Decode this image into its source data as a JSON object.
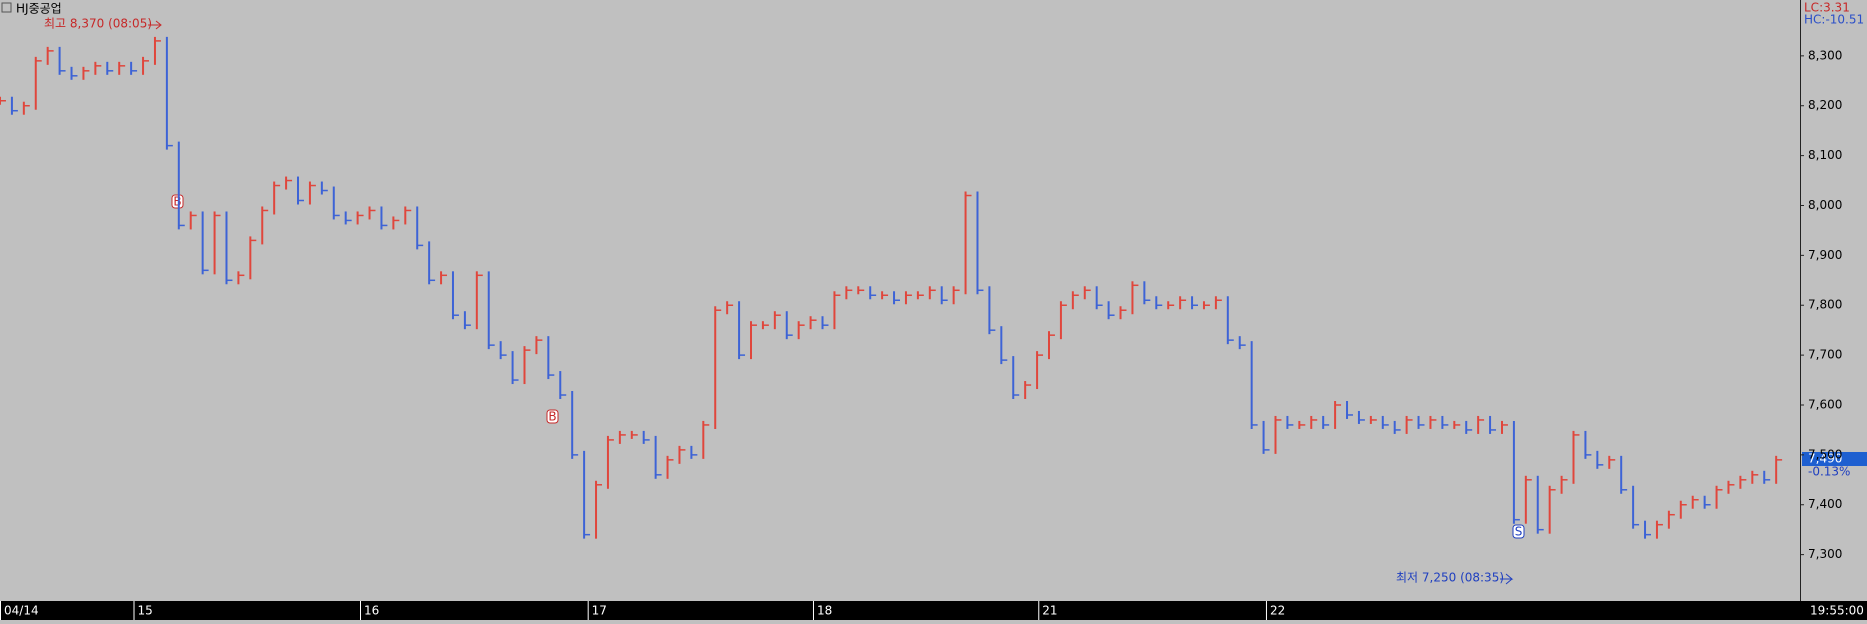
{
  "chart_data": {
    "type": "tickbar",
    "title": "HJ중공업",
    "indicators": [
      "LC:3.31",
      "HC:-10.51"
    ],
    "x": [
      0,
      1,
      2,
      3,
      4,
      5,
      6,
      7,
      8,
      9,
      10,
      11,
      12,
      13,
      14,
      15,
      16,
      17,
      18,
      19,
      20,
      21,
      22,
      23,
      24,
      25,
      26,
      27,
      28,
      29,
      30,
      31,
      32,
      33,
      34,
      35,
      36,
      37,
      38,
      39,
      40,
      41,
      42,
      43,
      44,
      45,
      46,
      47,
      48,
      49,
      50,
      51,
      52,
      53,
      54,
      55,
      56,
      57,
      58,
      59,
      60,
      61,
      62,
      63,
      64,
      65,
      66,
      67,
      68,
      69,
      70,
      71,
      72,
      73,
      74,
      75,
      76,
      77,
      78,
      79,
      80,
      81,
      82,
      83,
      84,
      85,
      86,
      87,
      88,
      89,
      90,
      91,
      92,
      93,
      94,
      95,
      96,
      97,
      98,
      99,
      100,
      101,
      102,
      103,
      104,
      105,
      106,
      107,
      108,
      109,
      110,
      111,
      112,
      113,
      114,
      115,
      116,
      117,
      118,
      119,
      120,
      121,
      122,
      123,
      124,
      125,
      126,
      127,
      128,
      129,
      130,
      131,
      132,
      133,
      134,
      135,
      136,
      137,
      138,
      139,
      140,
      141,
      142,
      143,
      144,
      145,
      146,
      147,
      148,
      149
    ],
    "values": [
      8210,
      8190,
      8200,
      8290,
      8310,
      8270,
      8260,
      8270,
      8280,
      8270,
      8280,
      8270,
      8290,
      8330,
      8120,
      7960,
      7980,
      7870,
      7980,
      7850,
      7860,
      7930,
      7990,
      8040,
      8050,
      8010,
      8040,
      8030,
      7980,
      7970,
      7980,
      7990,
      7960,
      7970,
      7990,
      7920,
      7850,
      7860,
      7780,
      7760,
      7860,
      7720,
      7700,
      7650,
      7710,
      7730,
      7660,
      7620,
      7500,
      7340,
      7440,
      7530,
      7540,
      7540,
      7530,
      7460,
      7490,
      7510,
      7500,
      7560,
      7790,
      7800,
      7700,
      7760,
      7760,
      7780,
      7740,
      7760,
      7770,
      7760,
      7820,
      7830,
      7830,
      7820,
      7820,
      7810,
      7820,
      7820,
      7830,
      7810,
      7830,
      8020,
      7830,
      7750,
      7690,
      7620,
      7640,
      7700,
      7740,
      7800,
      7820,
      7830,
      7800,
      7780,
      7790,
      7840,
      7810,
      7800,
      7800,
      7810,
      7800,
      7800,
      7810,
      7730,
      7720,
      7560,
      7510,
      7570,
      7560,
      7560,
      7570,
      7560,
      7600,
      7580,
      7570,
      7570,
      7560,
      7550,
      7570,
      7560,
      7570,
      7560,
      7560,
      7550,
      7570,
      7550,
      7560,
      7370,
      7450,
      7350,
      7430,
      7450,
      7540,
      7500,
      7480,
      7490,
      7430,
      7360,
      7340,
      7360,
      7380,
      7400,
      7410,
      7400,
      7430,
      7440,
      7450,
      7460,
      7450,
      7490
    ],
    "up_color": "#e0463c",
    "down_color": "#3d63d6",
    "xlim": [
      0,
      151
    ],
    "xticks": [
      {
        "value": 0,
        "label": "04/14"
      },
      {
        "value": 11.2,
        "label": "15"
      },
      {
        "value": 30.2,
        "label": "16"
      },
      {
        "value": 49.3,
        "label": "17"
      },
      {
        "value": 68.2,
        "label": "18"
      },
      {
        "value": 87.1,
        "label": "21"
      },
      {
        "value": 106.2,
        "label": "22"
      }
    ],
    "time_label": "19:55:00",
    "ylim": [
      7207,
      8412
    ],
    "yticks": [
      {
        "value": 7300,
        "label": "7,300"
      },
      {
        "value": 7400,
        "label": "7,400"
      },
      {
        "value": 7500,
        "label": "7,500"
      },
      {
        "value": 7600,
        "label": "7,600"
      },
      {
        "value": 7700,
        "label": "7,700"
      },
      {
        "value": 7800,
        "label": "7,800"
      },
      {
        "value": 7900,
        "label": "7,900"
      },
      {
        "value": 8000,
        "label": "8,000"
      },
      {
        "value": 8100,
        "label": "8,100"
      },
      {
        "value": 8200,
        "label": "8,200"
      },
      {
        "value": 8300,
        "label": "8,300"
      }
    ],
    "grid": false,
    "high_note": "최고 8,370 (08:05)",
    "low_note": "최저 7,250 (08:35)",
    "signals": [
      "B",
      "B",
      "S"
    ],
    "last_price": "7,490",
    "last_change": "-0.13%"
  }
}
